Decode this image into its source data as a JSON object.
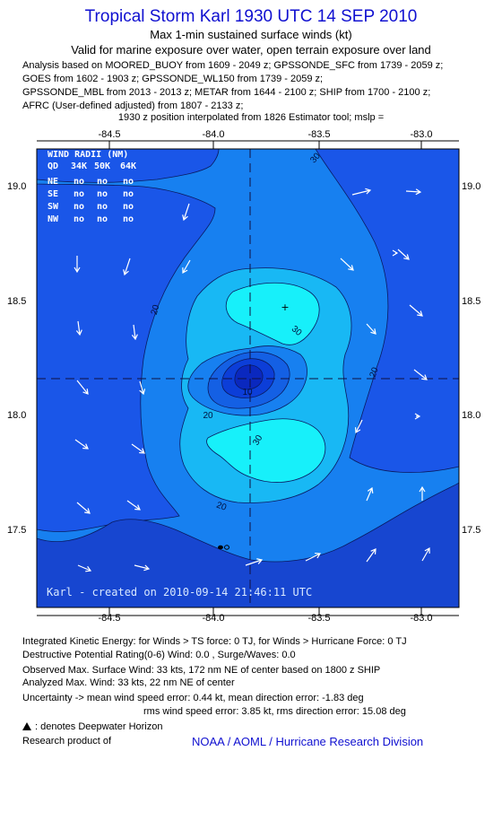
{
  "header": {
    "title": "Tropical Storm Karl 1930 UTC 14 SEP 2010",
    "subtitle1": "Max 1-min sustained surface winds (kt)",
    "subtitle2": "Valid for marine exposure over water, open terrain exposure over land"
  },
  "analysis_lines": [
    "Analysis based on MOORED_BUOY from 1609 - 2049 z; GPSSONDE_SFC from 1739 - 2059 z;",
    "GOES from 1602 - 1903 z; GPSSONDE_WL150 from 1739 - 2059 z;",
    "GPSSONDE_MBL from 2013 - 2013 z; METAR from 1644 - 2100 z; SHIP from 1700 - 2100 z;",
    "AFRC (User-defined adjusted) from 1807 - 2133 z;"
  ],
  "position_line": "1930 z position interpolated from 1826 Estimator tool; mslp =",
  "map": {
    "lon_ticks": [
      "-84.5",
      "-84.0",
      "-83.5",
      "-83.0"
    ],
    "lat_ticks": [
      "19.0",
      "18.5",
      "18.0",
      "17.5"
    ],
    "contour_labels": [
      "20",
      "30",
      "20",
      "30",
      "20",
      "30",
      "20",
      "10",
      "20"
    ],
    "wind_radii": {
      "title": "WIND RADII (NM)",
      "columns": [
        "QD",
        "34K",
        "50K",
        "64K"
      ],
      "rows": [
        [
          "NE",
          "no",
          "no",
          "no"
        ],
        [
          "SE",
          "no",
          "no",
          "no"
        ],
        [
          "SW",
          "no",
          "no",
          "no"
        ],
        [
          "NW",
          "no",
          "no",
          "no"
        ]
      ]
    },
    "created_text": "Karl - created on 2010-09-14 21:46:11 UTC",
    "colors": {
      "background": "#1a56e8",
      "band_20": "#1780f0",
      "band_30": "#18b8f4",
      "band_40": "#17f0fa",
      "eye_10": "#1460e4",
      "eye_0": "#0c3ed8",
      "eye_core": "#0a28bf",
      "outer_low": "#1746d0"
    }
  },
  "footer": {
    "ike": "Integrated Kinetic Energy:  for Winds > TS force: 0 TJ,  for Winds > Hurricane Force: 0 TJ",
    "dpr": "Destructive Potential Rating(0-6)   Wind: 0.0 , Surge/Waves: 0.0",
    "observed_max": "Observed Max. Surface Wind: 33 kts, 172 nm NE of center based on 1800 z SHIP",
    "analyzed_max": "Analyzed Max. Wind: 33 kts, 22 nm NE of center",
    "uncertainty1": "Uncertainty -> mean wind speed error: 0.44 kt,   mean direction error:  -1.83 deg",
    "uncertainty2": "rms wind speed error: 3.85 kt,   rms direction error: 15.08 deg",
    "dwh": ": denotes Deepwater Horizon",
    "research": "Research product of",
    "credit": "NOAA / AOML / Hurricane Research Division"
  }
}
